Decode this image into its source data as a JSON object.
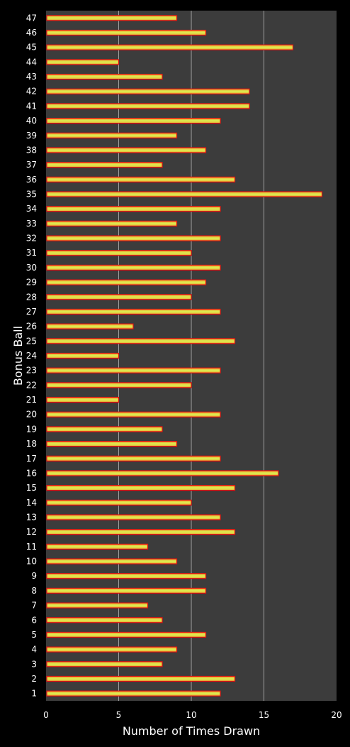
{
  "chart_data": {
    "type": "bar",
    "orientation": "horizontal",
    "title": "",
    "xlabel": "Number of Times Drawn",
    "ylabel": "Bonus Ball",
    "xlim": [
      0,
      20
    ],
    "xticks": [
      "0",
      "5",
      "10",
      "15",
      "20"
    ],
    "grid": true,
    "categories": [
      "1",
      "2",
      "3",
      "4",
      "5",
      "6",
      "7",
      "8",
      "9",
      "10",
      "11",
      "12",
      "13",
      "14",
      "15",
      "16",
      "17",
      "18",
      "19",
      "20",
      "21",
      "22",
      "23",
      "24",
      "25",
      "26",
      "27",
      "28",
      "29",
      "30",
      "31",
      "32",
      "33",
      "34",
      "35",
      "36",
      "37",
      "38",
      "39",
      "40",
      "41",
      "42",
      "43",
      "44",
      "45",
      "46",
      "47"
    ],
    "values": [
      12,
      13,
      8,
      9,
      11,
      8,
      7,
      11,
      11,
      9,
      7,
      13,
      12,
      10,
      13,
      16,
      12,
      9,
      8,
      12,
      5,
      10,
      12,
      5,
      13,
      6,
      12,
      10,
      11,
      12,
      10,
      12,
      9,
      12,
      19,
      13,
      8,
      11,
      9,
      12,
      14,
      14,
      8,
      5,
      17,
      11,
      9
    ],
    "colors": {
      "background": "#000000",
      "plot_area": "#3c3c3c",
      "gridline": "#a0a0a0",
      "bar_fill_center": "#d8e84a",
      "bar_fill_edge": "#f0a030",
      "bar_border": "#e01010",
      "text": "#ffffff"
    }
  }
}
